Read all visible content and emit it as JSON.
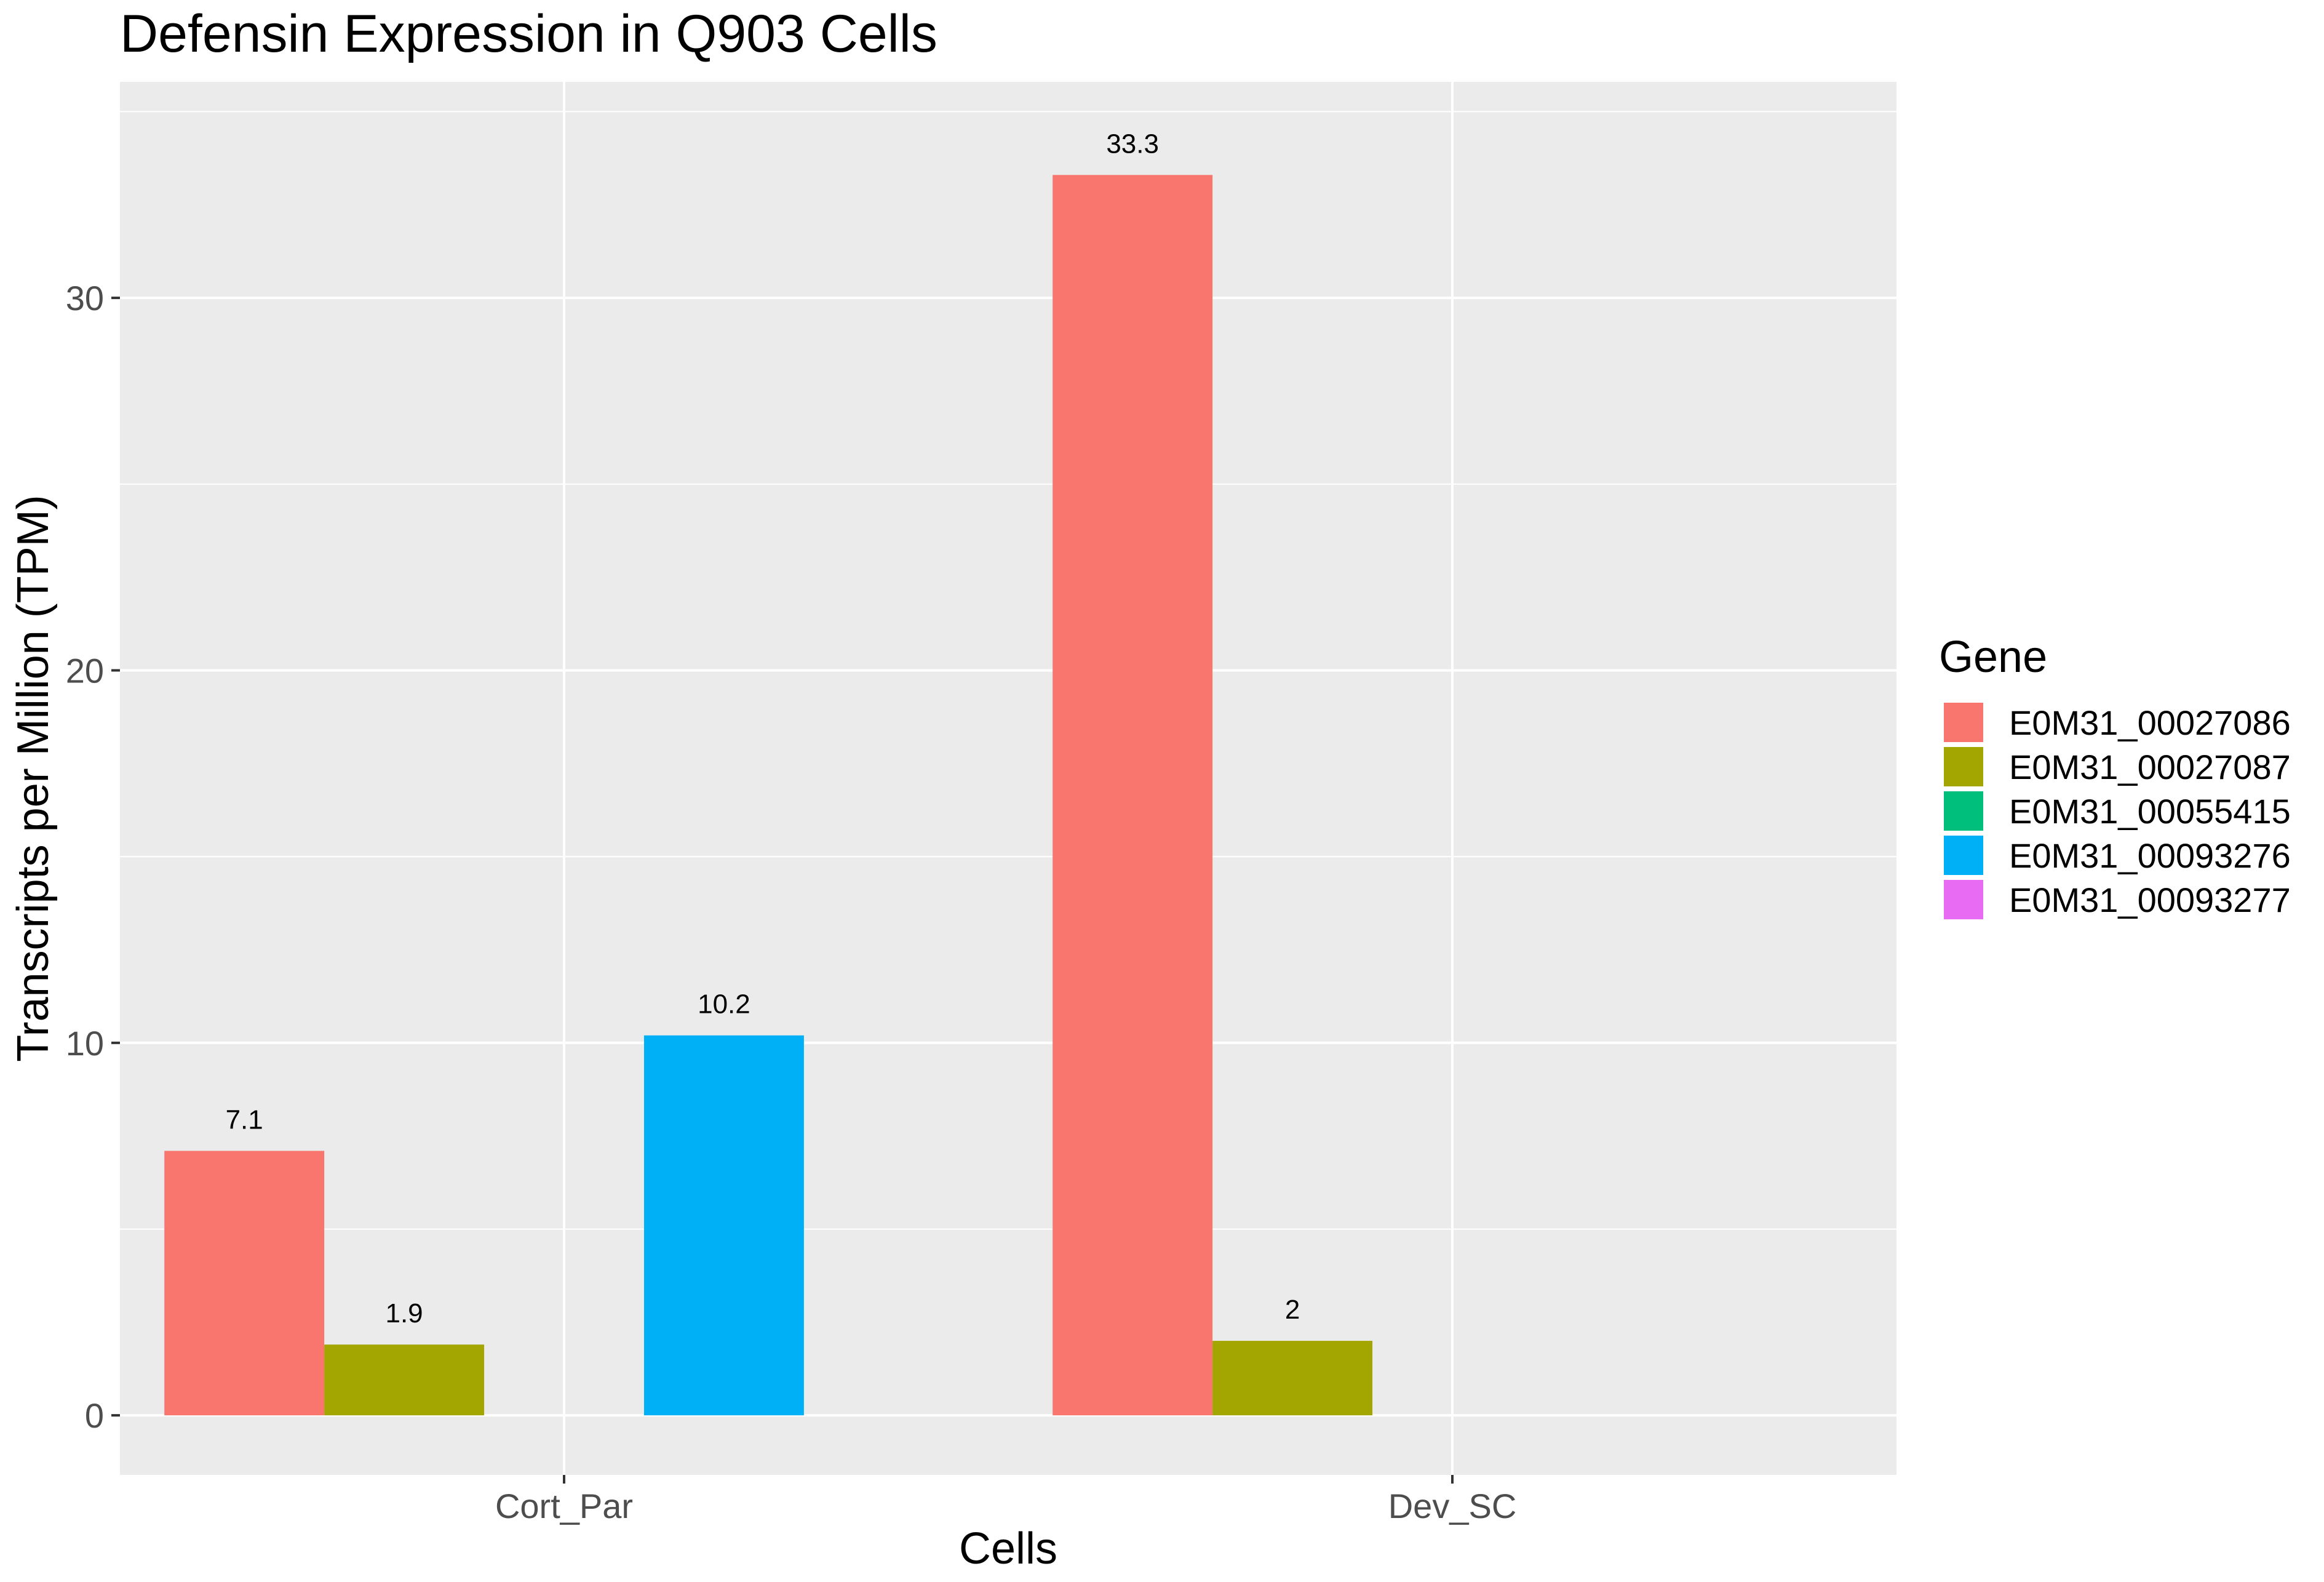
{
  "chart_data": {
    "type": "bar",
    "title": "Defensin Expression in Q903 Cells",
    "xlabel": "Cells",
    "ylabel": "Transcripts per Million (TPM)",
    "categories": [
      "Cort_Par",
      "Dev_SC"
    ],
    "ylim": [
      -1.6,
      35.8
    ],
    "yticks": [
      0,
      10,
      20,
      30
    ],
    "grid": true,
    "legend": {
      "title": "Gene",
      "position": "right"
    },
    "series": [
      {
        "name": "E0M31_00027086",
        "color": "#F8766D",
        "values": [
          7.1,
          33.3
        ],
        "labels": [
          "7.1",
          "33.3"
        ]
      },
      {
        "name": "E0M31_00027087",
        "color": "#A3A500",
        "values": [
          1.9,
          2
        ],
        "labels": [
          "1.9",
          "2"
        ]
      },
      {
        "name": "E0M31_00055415",
        "color": "#00BF7D",
        "values": [
          null,
          null
        ],
        "labels": [
          null,
          null
        ]
      },
      {
        "name": "E0M31_00093276",
        "color": "#00B0F6",
        "values": [
          10.2,
          null
        ],
        "labels": [
          "10.2",
          null
        ]
      },
      {
        "name": "E0M31_00093277",
        "color": "#E76BF3",
        "values": [
          null,
          null
        ],
        "labels": [
          null,
          null
        ]
      }
    ]
  },
  "colors": {
    "panel_background": "#EBEBEB",
    "grid_line": "#FFFFFF"
  }
}
